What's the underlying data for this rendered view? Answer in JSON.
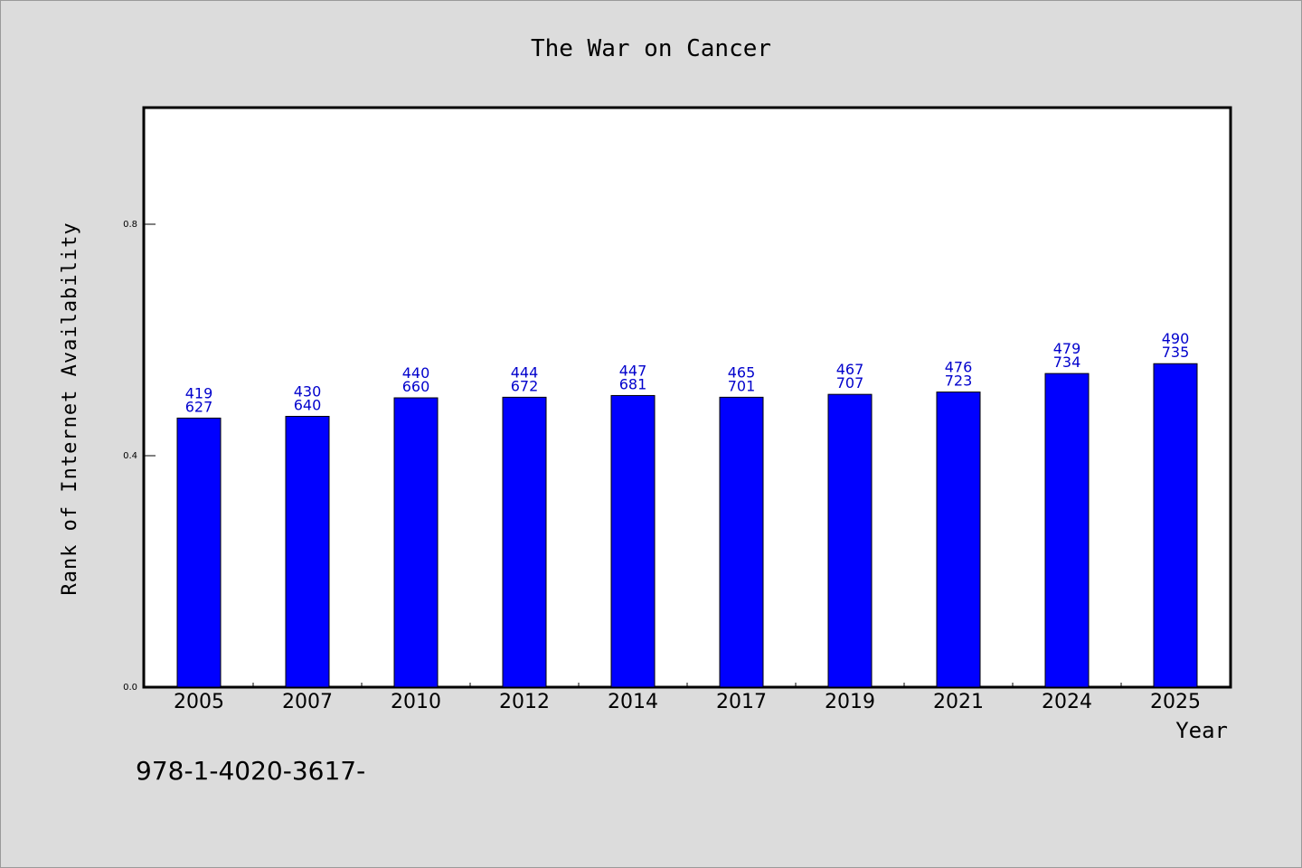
{
  "chart_data": {
    "type": "bar",
    "title": "The War on Cancer",
    "xlabel": "Year",
    "ylabel": "Rank of Internet Availability",
    "ylim": [
      0,
      1.0
    ],
    "yticks": [
      0.0,
      0.4,
      0.8
    ],
    "ytick_labels": [
      "0.0",
      "0.4",
      "0.8"
    ],
    "categories": [
      "2005",
      "2007",
      "2010",
      "2012",
      "2014",
      "2017",
      "2019",
      "2021",
      "2024",
      "2025"
    ],
    "values": [
      0.465,
      0.468,
      0.5,
      0.501,
      0.504,
      0.501,
      0.506,
      0.51,
      0.542,
      0.559
    ],
    "data_labels_top": [
      "419",
      "430",
      "440",
      "444",
      "447",
      "465",
      "467",
      "476",
      "479",
      "490"
    ],
    "data_labels_bottom": [
      "627",
      "640",
      "660",
      "672",
      "681",
      "701",
      "707",
      "723",
      "734",
      "735"
    ],
    "bar_color": "#0000ff",
    "label_color": "#0000cc",
    "grid": false
  },
  "footer_text": "978-1-4020-3617-"
}
